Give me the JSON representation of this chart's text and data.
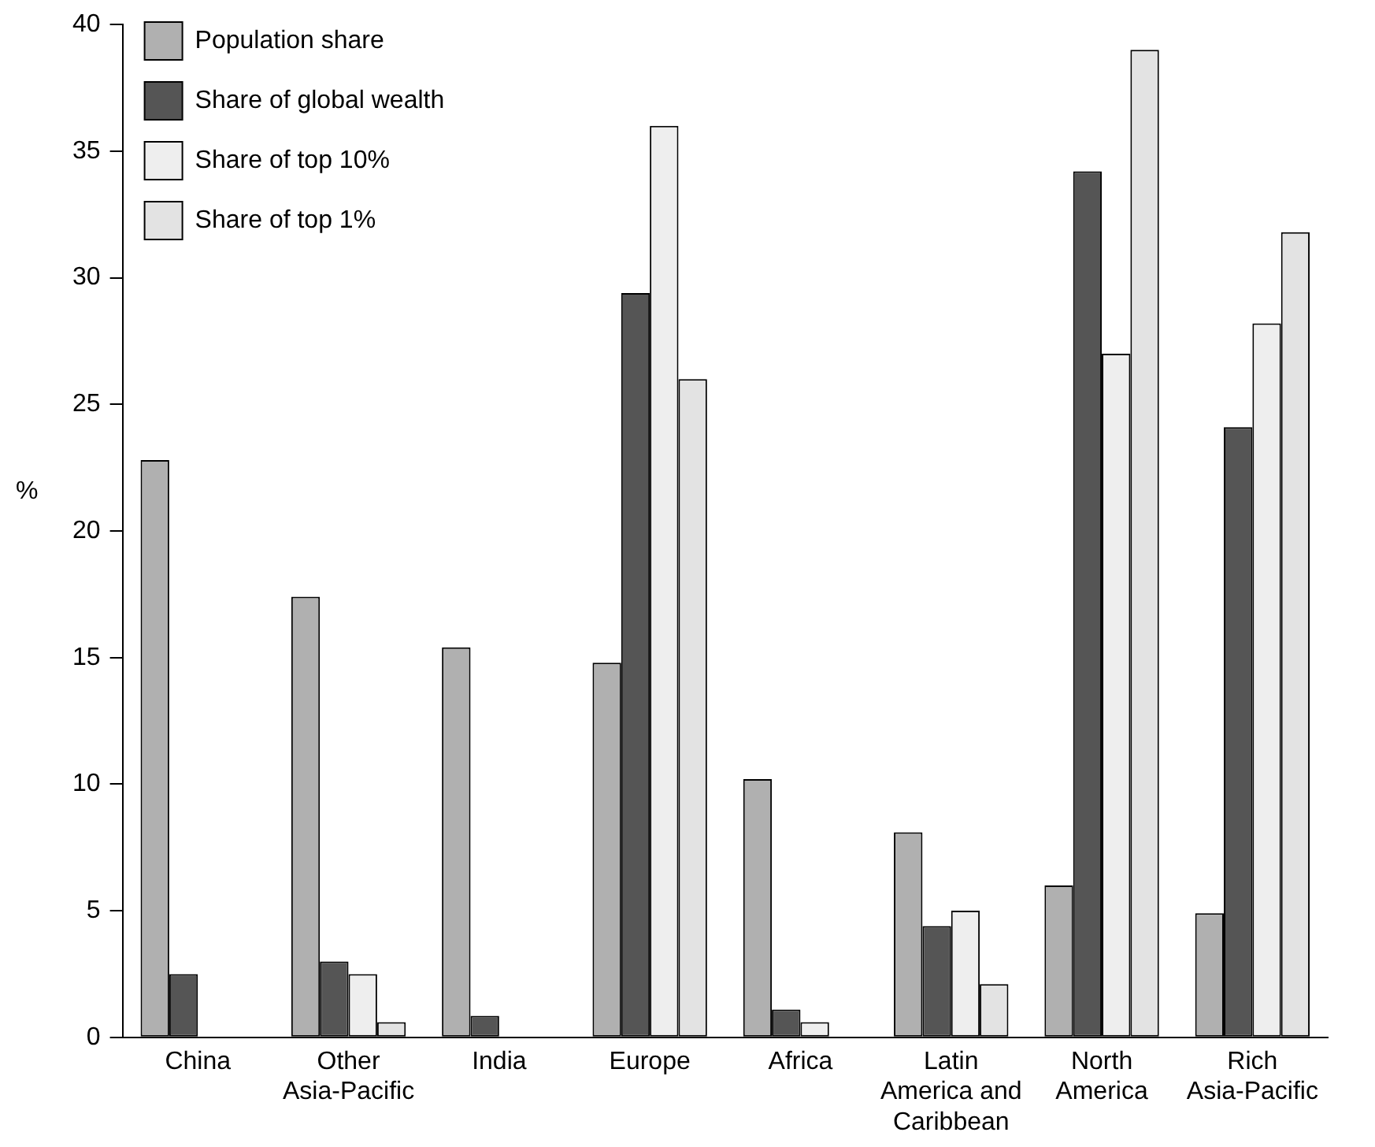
{
  "chart_data": {
    "type": "bar",
    "ylabel": "%",
    "categories": [
      "China",
      "Other Asia-Pacific",
      "India",
      "Europe",
      "Africa",
      "Latin America and Caribbean",
      "North America",
      "Rich Asia-Pacific"
    ],
    "series": [
      {
        "name": "Population share",
        "color": "#b0b0b0",
        "values": [
          22.8,
          17.4,
          15.4,
          14.8,
          10.2,
          8.1,
          6.0,
          4.9
        ]
      },
      {
        "name": "Share of global wealth",
        "color": "#555555",
        "values": [
          2.5,
          3.0,
          0.85,
          29.4,
          1.1,
          4.4,
          34.2,
          24.1
        ]
      },
      {
        "name": "Share of top 10%",
        "color": "#eeeeee",
        "values": [
          null,
          2.5,
          null,
          36.0,
          0.6,
          5.0,
          27.0,
          28.2
        ]
      },
      {
        "name": "Share of top 1%",
        "color": "#e3e3e3",
        "values": [
          null,
          0.6,
          null,
          26.0,
          null,
          2.1,
          39.0,
          31.8
        ]
      }
    ],
    "ylim": [
      0,
      40
    ],
    "yticks": [
      0,
      5,
      10,
      15,
      20,
      25,
      30,
      35,
      40
    ],
    "grid": false,
    "legend": "top left"
  }
}
